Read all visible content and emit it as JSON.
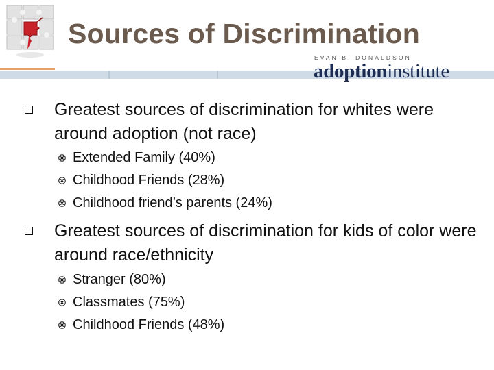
{
  "title": "Sources of Discrimination",
  "institute": {
    "top_line": "EVAN B. DONALDSON",
    "word_bold": "adoption",
    "word_light": "institute"
  },
  "sections": [
    {
      "text": "Greatest sources of discrimination for whites were around adoption (not race)",
      "items": [
        "Extended Family (40%)",
        "Childhood Friends (28%)",
        "Childhood friend’s parents (24%)"
      ]
    },
    {
      "text": "Greatest sources of discrimination for kids of color were around race/ethnicity",
      "items": [
        "Stranger (80%)",
        "Classmates (75%)",
        "Childhood Friends (48%)"
      ]
    }
  ],
  "colors": {
    "title": "#6b5a4e",
    "accent_orange": "#e8a066",
    "accent_blue": "#cfdbe6",
    "logo_navy": "#1c2b52",
    "puzzle_red": "#c8232a"
  },
  "icons": {
    "logo": "puzzle-pieces-icon",
    "level1": "hollow-square-bullet-icon",
    "level2": "circled-x-bullet-icon"
  }
}
